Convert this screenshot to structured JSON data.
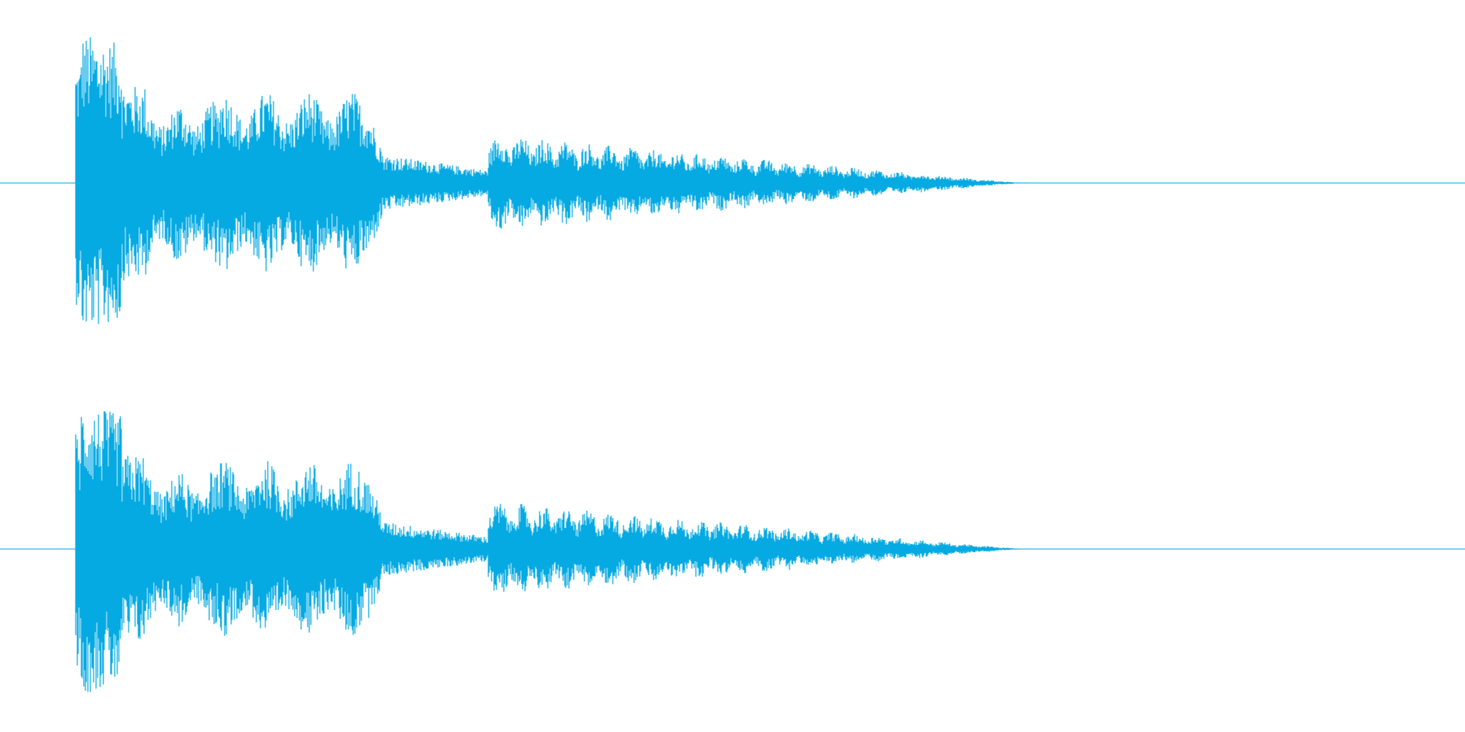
{
  "colors": {
    "background": "#ffffff",
    "waveform": "#06aae3",
    "baseline": "#06aae3"
  },
  "channels": [
    {
      "id": "channel-1"
    },
    {
      "id": "channel-2"
    }
  ]
}
